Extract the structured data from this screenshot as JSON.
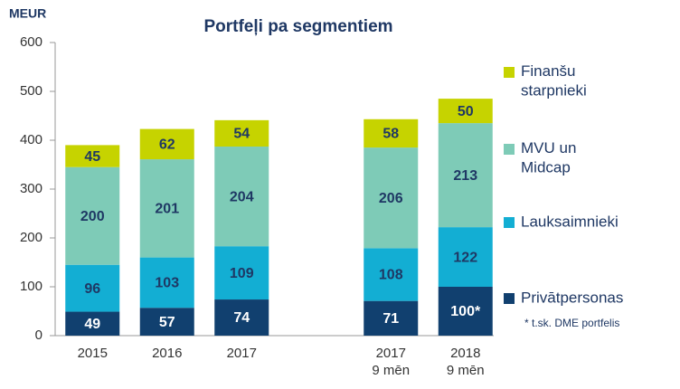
{
  "chart_data": {
    "type": "bar",
    "stacked": true,
    "title": "Portfeļi pa segmentiem",
    "y_label": "MEUR",
    "categories": [
      "2015",
      "2016",
      "2017",
      null,
      "2017\n9 mēn",
      "2018\n9 mēn"
    ],
    "series": [
      {
        "name": "Privātpersonas",
        "color": "#11406f",
        "values": [
          49,
          57,
          74,
          null,
          71,
          100
        ],
        "value_labels": [
          "49",
          "57",
          "74",
          null,
          "71",
          "100*"
        ]
      },
      {
        "name": "Lauksaimnieki",
        "color": "#13aed3",
        "values": [
          96,
          103,
          109,
          null,
          108,
          122
        ]
      },
      {
        "name": "MVU un\nMidcap",
        "color": "#7ecbb7",
        "values": [
          200,
          201,
          204,
          null,
          206,
          213
        ]
      },
      {
        "name": "Finanšu\nstarpnieki",
        "color": "#c6d300",
        "values": [
          45,
          62,
          54,
          null,
          58,
          50
        ]
      }
    ],
    "footnote": "* t.sk. DME portfelis",
    "ylim": [
      0,
      600
    ],
    "yticks": [
      0,
      100,
      200,
      300,
      400,
      500,
      600
    ],
    "grid": false,
    "legend": "right"
  }
}
